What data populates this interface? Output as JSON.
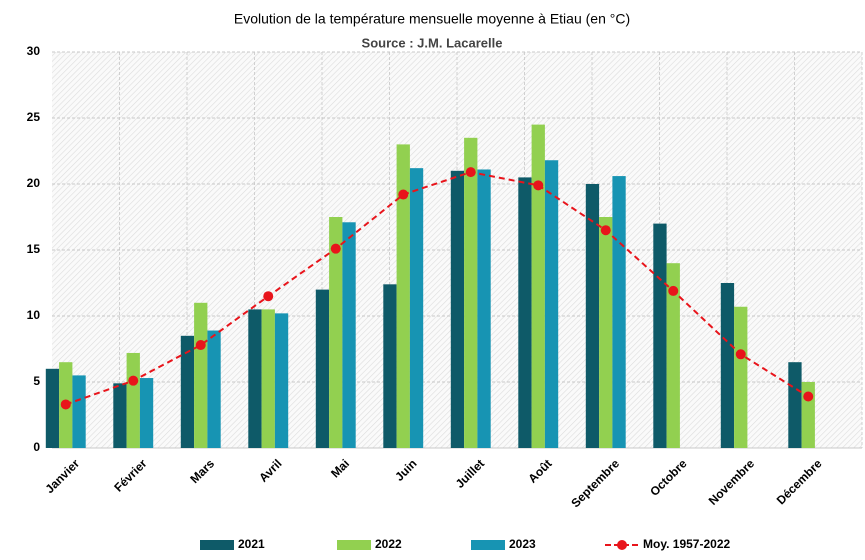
{
  "chart_data": {
    "type": "bar",
    "title": "Evolution de la température mensuelle moyenne à Etiau (en °C)",
    "subtitle": "Source : J.M. Lacarelle",
    "categories": [
      "Janvier",
      "Février",
      "Mars",
      "Avril",
      "Mai",
      "Juin",
      "Juillet",
      "Août",
      "Septembre",
      "Octobre",
      "Novembre",
      "Décembre"
    ],
    "series": [
      {
        "name": "2021",
        "color": "#0e5a68",
        "type": "bar",
        "values": [
          6,
          4.9,
          8.5,
          10.5,
          12,
          12.4,
          21,
          20.5,
          20,
          17,
          12.5,
          6.5
        ]
      },
      {
        "name": "2022",
        "color": "#92d050",
        "type": "bar",
        "values": [
          6.5,
          7.2,
          11,
          10.5,
          17.5,
          23,
          23.5,
          24.5,
          17.5,
          14,
          10.7,
          5
        ]
      },
      {
        "name": "2023",
        "color": "#1794b3",
        "type": "bar",
        "values": [
          5.5,
          5.3,
          8.9,
          10.2,
          17.1,
          21.2,
          21.1,
          21.8,
          20.6,
          null,
          null,
          null
        ]
      },
      {
        "name": "Moy. 1957-2022",
        "color": "#e8141b",
        "type": "line",
        "values": [
          3.3,
          5.1,
          7.8,
          11.5,
          15.1,
          19.2,
          20.9,
          19.9,
          16.5,
          11.9,
          7.1,
          3.9
        ]
      }
    ],
    "ylim": [
      0,
      30
    ],
    "yticks": [
      0,
      5,
      10,
      15,
      20,
      25,
      30
    ],
    "grid": true,
    "legend": "bottom"
  }
}
